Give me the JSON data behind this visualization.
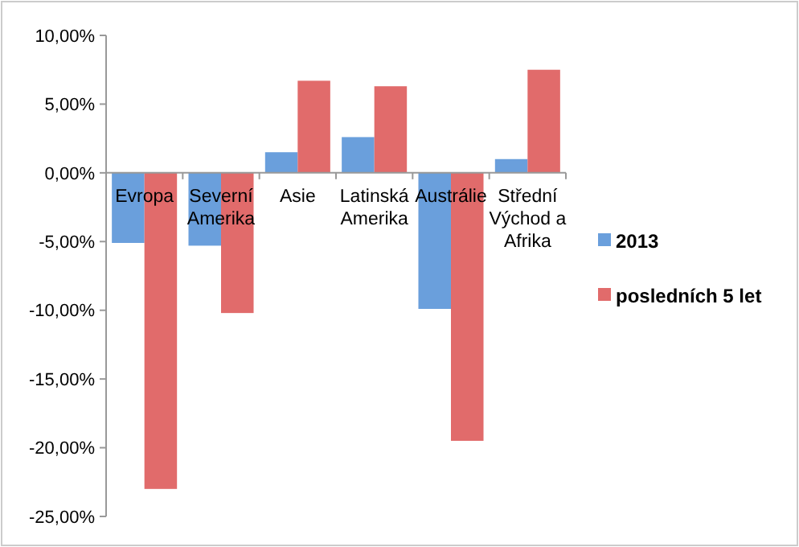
{
  "chart_data": {
    "type": "bar",
    "categories": [
      "Evropa",
      "Severní Amerika",
      "Asie",
      "Latinská Amerika",
      "Austrálie",
      "Střední Východ a Afrika"
    ],
    "series": [
      {
        "name": "2013",
        "color": "#6a9fdc",
        "values": [
          -5.1,
          -5.3,
          1.5,
          2.6,
          -9.9,
          1.0
        ]
      },
      {
        "name": "posledních 5 let",
        "color": "#e16b6b",
        "values": [
          -23,
          -10.2,
          6.7,
          6.3,
          -19.5,
          7.5
        ]
      }
    ],
    "ylim": [
      -25,
      10
    ],
    "yticks": [
      {
        "value": -25,
        "label": "-25,00%"
      },
      {
        "value": -20,
        "label": "-20,00%"
      },
      {
        "value": -15,
        "label": "-15,00%"
      },
      {
        "value": -10,
        "label": "-10,00%"
      },
      {
        "value": -5,
        "label": "-5,00%"
      },
      {
        "value": 0,
        "label": "0,00%"
      },
      {
        "value": 5,
        "label": "5,00%"
      },
      {
        "value": 10,
        "label": "10,00%"
      }
    ],
    "grid": false,
    "legend": "right"
  }
}
